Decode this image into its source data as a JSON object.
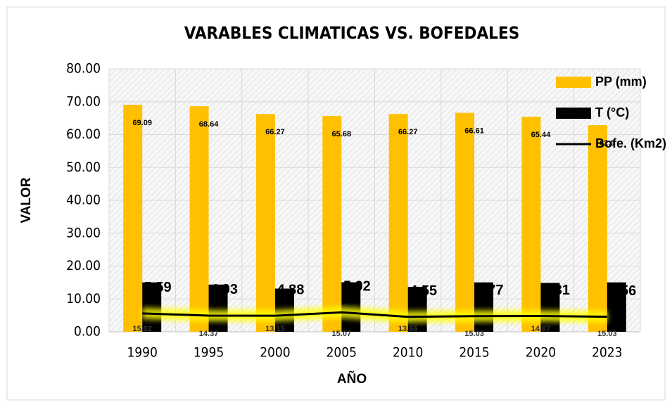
{
  "chart_data": {
    "type": "bar",
    "title": "VARABLES CLIMATICAS VS. BOFEDALES",
    "xlabel": "AÑO",
    "ylabel": "VALOR",
    "categories": [
      "1990",
      "1995",
      "2000",
      "2005",
      "2010",
      "2015",
      "2020",
      "2023"
    ],
    "series": [
      {
        "name": "PP (mm)",
        "type": "bar",
        "color": "#ffc000",
        "values": [
          69.09,
          68.64,
          66.27,
          65.68,
          66.27,
          66.61,
          65.44,
          62.9
        ],
        "value_labels": [
          "69.09",
          "68.64",
          "66.27",
          "65.68",
          "66.27",
          "66.61",
          "65.44",
          "62.9"
        ]
      },
      {
        "name": "T (°C)",
        "type": "bar",
        "color": "#000000",
        "values": [
          15.02,
          14.37,
          13.15,
          15.07,
          13.66,
          15.03,
          14.87,
          15.03
        ],
        "value_labels": [
          "15.02",
          "14.37",
          "13.15",
          "15.07",
          "13.66",
          "15.03",
          "14.87",
          "15.03"
        ]
      },
      {
        "name": "Bofe. (Km2)",
        "type": "line",
        "color": "#000000",
        "values": [
          5.59,
          4.93,
          4.88,
          5.92,
          4.55,
          4.77,
          4.81,
          4.56
        ],
        "value_labels": [
          "5.59",
          "4.93",
          "4.88",
          "5.92",
          "4.55",
          "4.77",
          "4.81",
          "4.56"
        ]
      }
    ],
    "ylim": [
      0,
      80
    ],
    "yticks": [
      {
        "value": 0,
        "label": "0.00"
      },
      {
        "value": 10,
        "label": "10.00"
      },
      {
        "value": 20,
        "label": "20.00"
      },
      {
        "value": 30,
        "label": "30.00"
      },
      {
        "value": 40,
        "label": "40.00"
      },
      {
        "value": 50,
        "label": "50.00"
      },
      {
        "value": 60,
        "label": "60.00"
      },
      {
        "value": 70,
        "label": "70.00"
      },
      {
        "value": 80,
        "label": "80.00"
      }
    ],
    "grid": true,
    "legend": "upper right"
  }
}
